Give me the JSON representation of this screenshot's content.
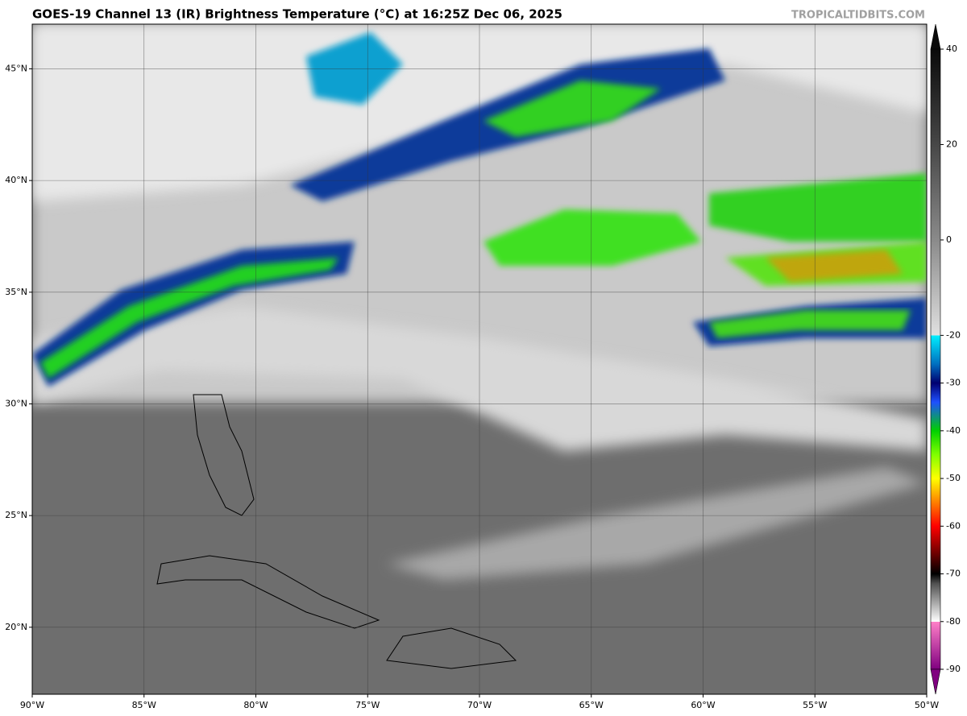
{
  "title": "GOES-19 Channel 13 (IR) Brightness Temperature (°C) at 16:25Z Dec 06, 2025",
  "watermark": "TROPICALTIDBITS.COM",
  "map": {
    "xlim": [
      -90,
      -50
    ],
    "ylim": [
      17,
      47
    ],
    "xticks": [
      {
        "value": -90,
        "label": "90°W"
      },
      {
        "value": -85,
        "label": "85°W"
      },
      {
        "value": -80,
        "label": "80°W"
      },
      {
        "value": -75,
        "label": "75°W"
      },
      {
        "value": -70,
        "label": "70°W"
      },
      {
        "value": -65,
        "label": "65°W"
      },
      {
        "value": -60,
        "label": "60°W"
      },
      {
        "value": -55,
        "label": "55°W"
      },
      {
        "value": -50,
        "label": "50°W"
      }
    ],
    "yticks": [
      {
        "value": 20,
        "label": "20°N"
      },
      {
        "value": 25,
        "label": "25°N"
      },
      {
        "value": 30,
        "label": "30°N"
      },
      {
        "value": 35,
        "label": "35°N"
      },
      {
        "value": 40,
        "label": "40°N"
      },
      {
        "value": 45,
        "label": "45°N"
      }
    ],
    "grid": true
  },
  "colorbar": {
    "lim": [
      -90,
      40
    ],
    "ticks": [
      40,
      20,
      0,
      -20,
      -30,
      -40,
      -50,
      -60,
      -70,
      -80,
      -90
    ],
    "stops": [
      {
        "value": 40,
        "color": "#0a0a0a"
      },
      {
        "value": 20,
        "color": "#474747"
      },
      {
        "value": 0,
        "color": "#8a8a8a"
      },
      {
        "value": -20,
        "color": "#e0e0e0"
      },
      {
        "value": -20,
        "color": "#00f0ff"
      },
      {
        "value": -26,
        "color": "#0070c0"
      },
      {
        "value": -30,
        "color": "#000070"
      },
      {
        "value": -34,
        "color": "#1e50ff"
      },
      {
        "value": -40,
        "color": "#00d000"
      },
      {
        "value": -45,
        "color": "#80ff00"
      },
      {
        "value": -50,
        "color": "#ffff00"
      },
      {
        "value": -55,
        "color": "#ff8000"
      },
      {
        "value": -60,
        "color": "#ff0000"
      },
      {
        "value": -65,
        "color": "#800000"
      },
      {
        "value": -70,
        "color": "#000000"
      },
      {
        "value": -72,
        "color": "#505050"
      },
      {
        "value": -80,
        "color": "#ffffff"
      },
      {
        "value": -80,
        "color": "#ff80c8"
      },
      {
        "value": -90,
        "color": "#800080"
      }
    ]
  }
}
